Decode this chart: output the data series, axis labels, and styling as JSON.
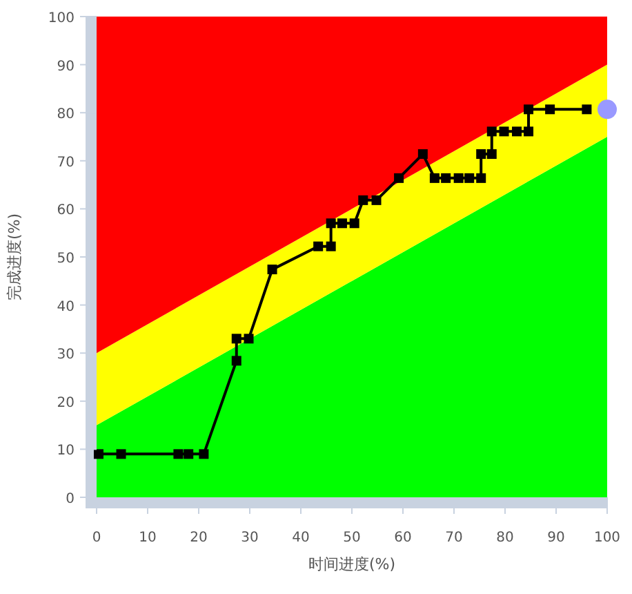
{
  "chart_data": {
    "type": "line",
    "xlabel": "时间进度(%)",
    "ylabel": "完成进度(%)",
    "xlim": [
      0,
      100
    ],
    "ylim": [
      0,
      100
    ],
    "xticks": [
      0,
      10,
      20,
      30,
      40,
      50,
      60,
      70,
      80,
      90,
      100
    ],
    "yticks": [
      0,
      10,
      20,
      30,
      40,
      50,
      60,
      70,
      80,
      90,
      100
    ],
    "stacked": true,
    "series": [
      {
        "type": "area",
        "color": "#00ff00",
        "x": [
          0,
          100
        ],
        "values": [
          15,
          75
        ]
      },
      {
        "type": "area",
        "color": "#ffff00",
        "x": [
          0,
          100
        ],
        "values": [
          15,
          15
        ]
      },
      {
        "type": "area",
        "color": "#ff0000",
        "x": [
          0,
          100
        ],
        "values": [
          70,
          10
        ]
      },
      {
        "color": "#000000",
        "marker": "square",
        "x": [
          0.4,
          4.8,
          16,
          18,
          21,
          27.4,
          27.4,
          29.8,
          34.4,
          43.4,
          45.9,
          45.9,
          48.1,
          50.5,
          52.2,
          54.8,
          59.2,
          63.9,
          66.2,
          68.4,
          70.9,
          73,
          75.3,
          75.3,
          77.4,
          77.4,
          79.8,
          82.3,
          84.6,
          84.6,
          88.8,
          96
        ],
        "values": [
          9,
          9,
          9,
          9,
          9,
          28.4,
          33,
          33,
          47.4,
          52.2,
          52.2,
          57,
          57,
          57,
          61.8,
          61.8,
          66.4,
          71.4,
          66.4,
          66.4,
          66.4,
          66.4,
          66.4,
          71.4,
          71.4,
          76.1,
          76.1,
          76.1,
          76.1,
          80.7,
          80.7,
          80.7
        ]
      },
      {
        "type": "scatter",
        "color": "#9999ff",
        "marker": "circle",
        "x": [
          100
        ],
        "values": [
          80.7
        ]
      }
    ]
  }
}
